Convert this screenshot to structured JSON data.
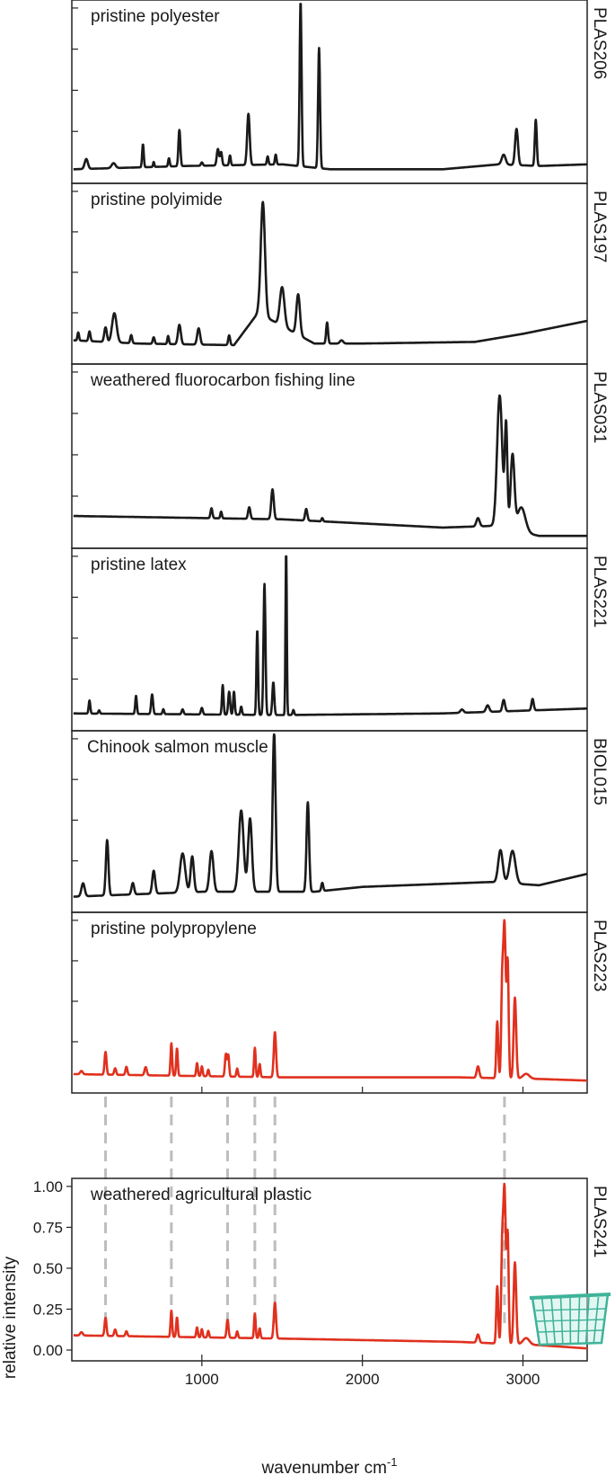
{
  "chart_data": {
    "type": "line",
    "xlabel": "wavenumber cm",
    "xlabel_sup": "-1",
    "ylabel": "relative intensity",
    "xlim": [
      190,
      3400
    ],
    "ylim": [
      -0.03,
      1.05
    ],
    "xticks": [
      "1000",
      "2000",
      "3000"
    ],
    "xtick_values": [
      1000,
      2000,
      3000
    ],
    "yticks": [
      "0.00",
      "0.25",
      "0.50",
      "0.75",
      "1.00"
    ],
    "ytick_values": [
      0.0,
      0.25,
      0.5,
      0.75,
      1.0
    ],
    "panels": [
      {
        "name": "pristine polyester",
        "id": "PLAS206",
        "color": "#1a1a1a",
        "baseline": [
          [
            200,
            0.02
          ],
          [
            900,
            0.04
          ],
          [
            1500,
            0.05
          ],
          [
            1800,
            0.02
          ],
          [
            2500,
            0.02
          ],
          [
            2850,
            0.05
          ],
          [
            3100,
            0.04
          ],
          [
            3400,
            0.05
          ]
        ],
        "peaks": [
          [
            280,
            0.06,
            10
          ],
          [
            450,
            0.03,
            12
          ],
          [
            633,
            0.14,
            5
          ],
          [
            700,
            0.03,
            4
          ],
          [
            795,
            0.05,
            5
          ],
          [
            860,
            0.22,
            6
          ],
          [
            1000,
            0.02,
            6
          ],
          [
            1100,
            0.1,
            7
          ],
          [
            1120,
            0.08,
            6
          ],
          [
            1175,
            0.06,
            5
          ],
          [
            1290,
            0.31,
            8
          ],
          [
            1410,
            0.05,
            5
          ],
          [
            1460,
            0.06,
            5
          ],
          [
            1615,
            1.0,
            6
          ],
          [
            1730,
            0.73,
            6
          ],
          [
            2880,
            0.06,
            12
          ],
          [
            2960,
            0.22,
            9
          ],
          [
            3080,
            0.28,
            6
          ]
        ]
      },
      {
        "name": "pristine polyimide",
        "id": "PLAS197",
        "color": "#1a1a1a",
        "baseline": [
          [
            200,
            0.08
          ],
          [
            600,
            0.06
          ],
          [
            1200,
            0.05
          ],
          [
            1350,
            0.25
          ],
          [
            1700,
            0.06
          ],
          [
            2000,
            0.06
          ],
          [
            2700,
            0.07
          ],
          [
            3000,
            0.12
          ],
          [
            3400,
            0.2
          ]
        ],
        "peaks": [
          [
            230,
            0.05,
            5
          ],
          [
            300,
            0.06,
            6
          ],
          [
            400,
            0.09,
            8
          ],
          [
            455,
            0.18,
            14
          ],
          [
            560,
            0.05,
            6
          ],
          [
            700,
            0.04,
            6
          ],
          [
            790,
            0.05,
            5
          ],
          [
            860,
            0.12,
            9
          ],
          [
            980,
            0.1,
            9
          ],
          [
            1170,
            0.06,
            6
          ],
          [
            1380,
            0.7,
            13
          ],
          [
            1500,
            0.24,
            14
          ],
          [
            1600,
            0.25,
            11
          ],
          [
            1780,
            0.13,
            6
          ],
          [
            1870,
            0.02,
            10
          ]
        ]
      },
      {
        "name": "weathered fluorocarbon fishing line",
        "id": "PLAS031",
        "color": "#1a1a1a",
        "baseline": [
          [
            200,
            0.13
          ],
          [
            1500,
            0.11
          ],
          [
            2500,
            0.06
          ],
          [
            2800,
            0.07
          ],
          [
            3100,
            0.01
          ],
          [
            3400,
            0.01
          ]
        ],
        "peaks": [
          [
            1060,
            0.06,
            6
          ],
          [
            1120,
            0.04,
            5
          ],
          [
            1295,
            0.07,
            7
          ],
          [
            1440,
            0.18,
            8
          ],
          [
            1650,
            0.07,
            7
          ],
          [
            1750,
            0.02,
            5
          ],
          [
            2720,
            0.05,
            10
          ],
          [
            2855,
            0.8,
            16
          ],
          [
            2895,
            0.62,
            8
          ],
          [
            2935,
            0.45,
            12
          ],
          [
            2990,
            0.15,
            25
          ]
        ]
      },
      {
        "name": "pristine latex",
        "id": "PLAS221",
        "color": "#1a1a1a",
        "baseline": [
          [
            200,
            0.04
          ],
          [
            1500,
            0.03
          ],
          [
            2500,
            0.04
          ],
          [
            3400,
            0.07
          ]
        ],
        "peaks": [
          [
            300,
            0.08,
            5
          ],
          [
            360,
            0.02,
            5
          ],
          [
            590,
            0.11,
            5
          ],
          [
            690,
            0.12,
            6
          ],
          [
            760,
            0.03,
            5
          ],
          [
            880,
            0.03,
            6
          ],
          [
            1000,
            0.04,
            6
          ],
          [
            1130,
            0.18,
            5
          ],
          [
            1170,
            0.14,
            6
          ],
          [
            1200,
            0.14,
            5
          ],
          [
            1245,
            0.05,
            5
          ],
          [
            1345,
            0.52,
            5
          ],
          [
            1390,
            0.8,
            6
          ],
          [
            1445,
            0.2,
            6
          ],
          [
            1525,
            1.0,
            4
          ],
          [
            1570,
            0.03,
            5
          ],
          [
            2620,
            0.02,
            10
          ],
          [
            2780,
            0.04,
            10
          ],
          [
            2880,
            0.07,
            8
          ],
          [
            3060,
            0.07,
            7
          ]
        ]
      },
      {
        "name": "Chinook salmon muscle",
        "id": "BIOL015",
        "color": "#1a1a1a",
        "baseline": [
          [
            200,
            0.03
          ],
          [
            1000,
            0.06
          ],
          [
            1700,
            0.06
          ],
          [
            2000,
            0.09
          ],
          [
            2800,
            0.12
          ],
          [
            3100,
            0.1
          ],
          [
            3400,
            0.17
          ]
        ],
        "peaks": [
          [
            260,
            0.08,
            10
          ],
          [
            410,
            0.34,
            8
          ],
          [
            570,
            0.07,
            8
          ],
          [
            700,
            0.14,
            9
          ],
          [
            880,
            0.24,
            16
          ],
          [
            940,
            0.22,
            10
          ],
          [
            1060,
            0.25,
            12
          ],
          [
            1245,
            0.5,
            15
          ],
          [
            1300,
            0.45,
            12
          ],
          [
            1450,
            0.98,
            9
          ],
          [
            1660,
            0.55,
            8
          ],
          [
            1750,
            0.05,
            6
          ],
          [
            2860,
            0.2,
            14
          ],
          [
            2935,
            0.2,
            18
          ]
        ]
      },
      {
        "name": "pristine polypropylene",
        "id": "PLAS223",
        "color": "#e0311e",
        "baseline": [
          [
            200,
            0.05
          ],
          [
            1500,
            0.03
          ],
          [
            2600,
            0.03
          ],
          [
            3100,
            0.02
          ],
          [
            3400,
            0.01
          ]
        ],
        "peaks": [
          [
            250,
            0.02,
            8
          ],
          [
            400,
            0.14,
            6
          ],
          [
            460,
            0.04,
            6
          ],
          [
            530,
            0.05,
            6
          ],
          [
            650,
            0.05,
            7
          ],
          [
            810,
            0.2,
            5
          ],
          [
            845,
            0.17,
            5
          ],
          [
            970,
            0.08,
            5
          ],
          [
            1000,
            0.06,
            5
          ],
          [
            1040,
            0.04,
            5
          ],
          [
            1150,
            0.14,
            6
          ],
          [
            1165,
            0.13,
            5
          ],
          [
            1220,
            0.05,
            5
          ],
          [
            1330,
            0.18,
            5
          ],
          [
            1360,
            0.08,
            5
          ],
          [
            1455,
            0.28,
            7
          ],
          [
            2720,
            0.07,
            8
          ],
          [
            2840,
            0.35,
            6
          ],
          [
            2870,
            0.5,
            6
          ],
          [
            2885,
            0.95,
            8
          ],
          [
            2905,
            0.7,
            6
          ],
          [
            2950,
            0.5,
            8
          ],
          [
            3020,
            0.03,
            20
          ]
        ]
      },
      {
        "name": "weathered agricultural plastic",
        "id": "PLAS241",
        "color": "#e0311e",
        "baseline": [
          [
            200,
            0.09
          ],
          [
            1500,
            0.07
          ],
          [
            2600,
            0.05
          ],
          [
            3100,
            0.03
          ],
          [
            3400,
            0.01
          ]
        ],
        "peaks": [
          [
            250,
            0.02,
            8
          ],
          [
            400,
            0.11,
            6
          ],
          [
            460,
            0.04,
            6
          ],
          [
            530,
            0.03,
            6
          ],
          [
            810,
            0.16,
            5
          ],
          [
            845,
            0.12,
            5
          ],
          [
            970,
            0.06,
            5
          ],
          [
            1000,
            0.05,
            5
          ],
          [
            1040,
            0.04,
            5
          ],
          [
            1160,
            0.11,
            6
          ],
          [
            1220,
            0.04,
            5
          ],
          [
            1330,
            0.15,
            5
          ],
          [
            1360,
            0.06,
            5
          ],
          [
            1455,
            0.22,
            7
          ],
          [
            2720,
            0.05,
            8
          ],
          [
            2840,
            0.35,
            6
          ],
          [
            2870,
            0.5,
            6
          ],
          [
            2885,
            0.95,
            8
          ],
          [
            2905,
            0.65,
            6
          ],
          [
            2950,
            0.5,
            8
          ],
          [
            3020,
            0.04,
            20
          ]
        ]
      }
    ],
    "guide_lines": [
      400,
      810,
      1160,
      1330,
      1455,
      2885
    ]
  },
  "icons": {
    "basket": "green-basket-icon",
    "basket_color": "#3fb39a"
  }
}
